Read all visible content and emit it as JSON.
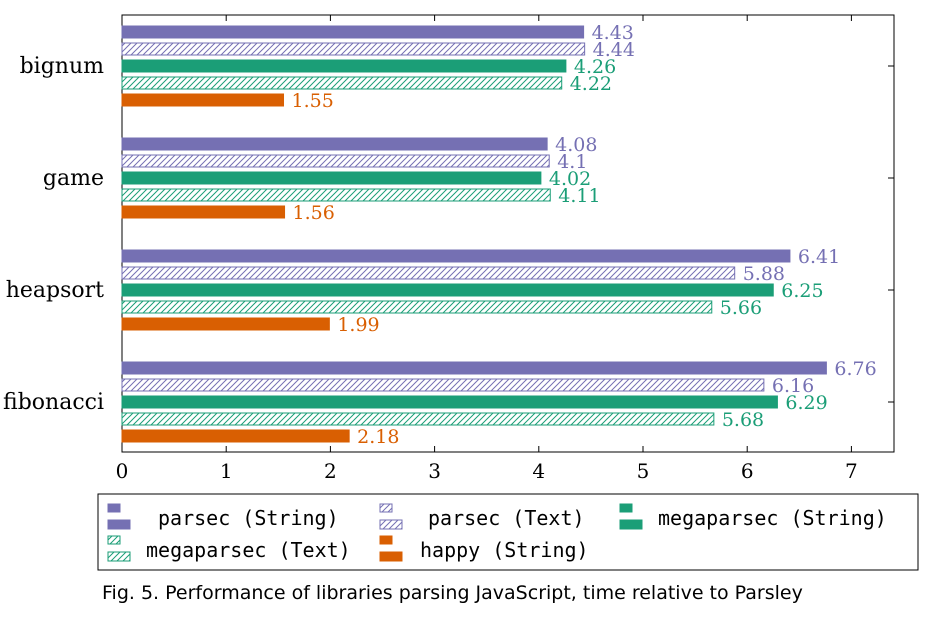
{
  "chart_data": {
    "type": "bar",
    "orientation": "horizontal",
    "categories": [
      "bignum",
      "game",
      "heapsort",
      "fibonacci"
    ],
    "series": [
      {
        "name": "parsec (String)",
        "values": [
          4.43,
          4.08,
          6.41,
          6.76
        ],
        "color": "#7570b3",
        "pattern": "solid"
      },
      {
        "name": "parsec (Text)",
        "values": [
          4.44,
          4.1,
          5.88,
          6.16
        ],
        "color": "#7570b3",
        "pattern": "hatched"
      },
      {
        "name": "megaparsec (String)",
        "values": [
          4.26,
          4.02,
          6.25,
          6.29
        ],
        "color": "#1b9e77",
        "pattern": "solid"
      },
      {
        "name": "megaparsec (Text)",
        "values": [
          4.22,
          4.11,
          5.66,
          5.68
        ],
        "color": "#1b9e77",
        "pattern": "hatched"
      },
      {
        "name": "happy (String)",
        "values": [
          1.55,
          1.56,
          1.99,
          2.18
        ],
        "color": "#d95f02",
        "pattern": "solid"
      }
    ],
    "value_labels": [
      [
        "4.43",
        "4.44",
        "4.26",
        "4.22",
        "1.55"
      ],
      [
        "4.08",
        "4.1",
        "4.02",
        "4.11",
        "1.56"
      ],
      [
        "6.41",
        "5.88",
        "6.25",
        "5.66",
        "1.99"
      ],
      [
        "6.76",
        "6.16",
        "6.29",
        "5.68",
        "2.18"
      ]
    ],
    "x_ticks": [
      "0",
      "1",
      "2",
      "3",
      "4",
      "5",
      "6",
      "7"
    ],
    "xlim": [
      0,
      7.4
    ],
    "grid": false,
    "legend_position": "bottom",
    "caption": "Fig. 5.  Performance of libraries parsing JavaScript, time relative to Parsley"
  }
}
